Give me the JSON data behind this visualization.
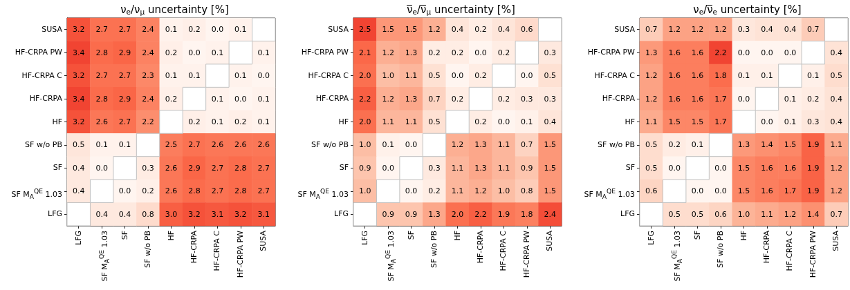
{
  "chart_data": [
    {
      "type": "heatmap",
      "title": "ν$_{e}$/ν$_{μ}$ uncertainty [%]",
      "data_labels": true,
      "categories": [
        "LFG",
        "SF M$_{A}$$^{QE}$ 1.03",
        "SF",
        "SF w/o PB",
        "HF",
        "HF-CRPA",
        "HF-CRPA C",
        "HF-CRPA PW",
        "SUSA"
      ],
      "y_categories": [
        "SUSA",
        "HF-CRPA PW",
        "HF-CRPA C",
        "HF-CRPA",
        "HF",
        "SF w/o PB",
        "SF",
        "SF M$_{A}$$^{QE}$ 1.03",
        "LFG"
      ],
      "cells": [
        [
          3.2,
          2.7,
          2.7,
          2.4,
          0.1,
          0.2,
          0.0,
          0.1,
          null
        ],
        [
          3.4,
          2.8,
          2.9,
          2.4,
          0.2,
          0.0,
          0.1,
          null,
          0.1
        ],
        [
          3.2,
          2.7,
          2.7,
          2.3,
          0.1,
          0.1,
          null,
          0.1,
          0.0
        ],
        [
          3.4,
          2.8,
          2.9,
          2.4,
          0.2,
          null,
          0.1,
          0.0,
          0.1
        ],
        [
          3.2,
          2.6,
          2.7,
          2.2,
          null,
          0.2,
          0.1,
          0.2,
          0.1
        ],
        [
          0.5,
          0.1,
          0.1,
          null,
          2.5,
          2.7,
          2.6,
          2.6,
          2.6
        ],
        [
          0.4,
          0.0,
          null,
          0.3,
          2.6,
          2.9,
          2.7,
          2.8,
          2.7
        ],
        [
          0.4,
          null,
          0.0,
          0.2,
          2.6,
          2.8,
          2.7,
          2.8,
          2.7
        ],
        [
          null,
          0.4,
          0.4,
          0.8,
          3.0,
          3.2,
          3.1,
          3.2,
          3.1
        ]
      ],
      "cell_labels": [
        [
          "3.2",
          "2.7",
          "2.7",
          "2.4",
          "0.1",
          "0.2",
          "0.0",
          "0.1",
          null
        ],
        [
          "3.4",
          "2.8",
          "2.9",
          "2.4",
          "0.2",
          "0.0",
          "0.1",
          null,
          "0.1"
        ],
        [
          "3.2",
          "2.7",
          "2.7",
          "2.3",
          "0.1",
          "0.1",
          null,
          "0.1",
          "0.0"
        ],
        [
          "3.4",
          "2.8",
          "2.9",
          "2.4",
          "0.2",
          null,
          "0.1",
          "0.0",
          "0.1"
        ],
        [
          "3.2",
          "2.6",
          "2.7",
          "2.2",
          null,
          "0.2",
          "0.1",
          "0.2",
          "0.1"
        ],
        [
          "0.5",
          "0.1",
          "0.1",
          null,
          "2.5",
          "2.7",
          "2.6",
          "2.6",
          "2.6"
        ],
        [
          "0.4",
          "0.0",
          null,
          "0.3",
          "2.6",
          "2.9",
          "2.7",
          "2.8",
          "2.7"
        ],
        [
          "0.4",
          null,
          "0.0",
          "0.2",
          "2.6",
          "2.8",
          "2.7",
          "2.8",
          "2.7"
        ],
        [
          null,
          "0.4",
          "0.4",
          "0.8",
          "3.0",
          "3.2",
          "3.1",
          "3.2",
          "3.1"
        ]
      ]
    },
    {
      "type": "heatmap",
      "title": "ν̅$_{e}$/ν̅$_{μ}$ uncertainty [%]",
      "data_labels": true,
      "categories": [
        "LFG",
        "SF M$_{A}$$^{QE}$ 1.03",
        "SF",
        "SF w/o PB",
        "HF",
        "HF-CRPA",
        "HF-CRPA C",
        "HF-CRPA PW",
        "SUSA"
      ],
      "y_categories": [
        "SUSA",
        "HF-CRPA PW",
        "HF-CRPA C",
        "HF-CRPA",
        "HF",
        "SF w/o PB",
        "SF",
        "SF M$_{A}$$^{QE}$ 1.03",
        "LFG"
      ],
      "cells": [
        [
          2.5,
          1.5,
          1.5,
          1.2,
          0.4,
          0.2,
          0.4,
          0.6,
          null
        ],
        [
          2.1,
          1.2,
          1.3,
          0.2,
          0.2,
          0.0,
          0.2,
          null,
          0.3
        ],
        [
          2.0,
          1.0,
          1.1,
          0.5,
          0.0,
          0.2,
          null,
          0.0,
          0.5
        ],
        [
          2.2,
          1.2,
          1.3,
          0.7,
          0.2,
          null,
          0.2,
          0.3,
          0.3
        ],
        [
          2.0,
          1.1,
          1.1,
          0.5,
          null,
          0.2,
          0.0,
          0.1,
          0.4
        ],
        [
          1.0,
          0.1,
          0.0,
          null,
          1.2,
          1.3,
          1.1,
          0.7,
          1.5
        ],
        [
          0.9,
          0.0,
          null,
          0.3,
          1.1,
          1.3,
          1.1,
          0.9,
          1.5
        ],
        [
          1.0,
          null,
          0.0,
          0.2,
          1.1,
          1.2,
          1.0,
          0.8,
          1.5
        ],
        [
          null,
          0.9,
          0.9,
          1.3,
          2.0,
          2.2,
          1.9,
          1.8,
          2.4
        ]
      ],
      "cell_labels": [
        [
          "2.5",
          "1.5",
          "1.5",
          "1.2",
          "0.4",
          "0.2",
          "0.4",
          "0.6",
          null
        ],
        [
          "2.1",
          "1.2",
          "1.3",
          "0.2",
          "0.2",
          "0.0",
          "0.2",
          null,
          "0.3"
        ],
        [
          "2.0",
          "1.0",
          "1.1",
          "0.5",
          "0.0",
          "0.2",
          null,
          "0.0",
          "0.5"
        ],
        [
          "2.2",
          "1.2",
          "1.3",
          "0.7",
          "0.2",
          null,
          "0.2",
          "0.3",
          "0.3"
        ],
        [
          "2.0",
          "1.1",
          "1.1",
          "0.5",
          null,
          "0.2",
          "0.0",
          "0.1",
          "0.4"
        ],
        [
          "1.0",
          "0.1",
          "0.0",
          null,
          "1.2",
          "1.3",
          "1.1",
          "0.7",
          "1.5"
        ],
        [
          "0.9",
          "0.0",
          null,
          "0.3",
          "1.1",
          "1.3",
          "1.1",
          "0.9",
          "1.5"
        ],
        [
          "1.0",
          null,
          "0.0",
          "0.2",
          "1.1",
          "1.2",
          "1.0",
          "0.8",
          "1.5"
        ],
        [
          null,
          "0.9",
          "0.9",
          "1.3",
          "2.0",
          "2.2",
          "1.9",
          "1.8",
          "2.4"
        ]
      ]
    },
    {
      "type": "heatmap",
      "title": "ν$_{e}$/ν̅$_{e}$ uncertainty [%]",
      "data_labels": true,
      "categories": [
        "LFG",
        "SF M$_{A}$$^{QE}$ 1.03",
        "SF",
        "SF w/o PB",
        "HF",
        "HF-CRPA",
        "HF-CRPA C",
        "HF-CRPA PW",
        "SUSA"
      ],
      "y_categories": [
        "SUSA",
        "HF-CRPA PW",
        "HF-CRPA C",
        "HF-CRPA",
        "HF",
        "SF w/o PB",
        "SF",
        "SF M$_{A}$$^{QE}$ 1.03",
        "LFG"
      ],
      "cells": [
        [
          0.7,
          1.2,
          1.2,
          1.2,
          0.3,
          0.4,
          0.4,
          0.7,
          null
        ],
        [
          1.3,
          1.6,
          1.6,
          2.2,
          0.0,
          0.0,
          0.0,
          null,
          0.4
        ],
        [
          1.2,
          1.6,
          1.6,
          1.8,
          0.1,
          0.1,
          null,
          0.1,
          0.5
        ],
        [
          1.2,
          1.6,
          1.6,
          1.7,
          0.0,
          null,
          0.1,
          0.2,
          0.4
        ],
        [
          1.1,
          1.5,
          1.5,
          1.7,
          null,
          0.0,
          0.1,
          0.3,
          0.4
        ],
        [
          0.5,
          0.2,
          0.1,
          null,
          1.3,
          1.4,
          1.5,
          1.9,
          1.1
        ],
        [
          0.5,
          0.0,
          null,
          0.0,
          1.5,
          1.6,
          1.6,
          1.9,
          1.2
        ],
        [
          0.6,
          null,
          0.0,
          0.0,
          1.5,
          1.6,
          1.7,
          1.9,
          1.2
        ],
        [
          null,
          0.5,
          0.5,
          0.6,
          1.0,
          1.1,
          1.2,
          1.4,
          0.7
        ]
      ],
      "cell_labels": [
        [
          "0.7",
          "1.2",
          "1.2",
          "1.2",
          "0.3",
          "0.4",
          "0.4",
          "0.7",
          null
        ],
        [
          "1.3",
          "1.6",
          "1.6",
          "2.2",
          "0.0",
          "0.0",
          "0.0",
          null,
          "0.4"
        ],
        [
          "1.2",
          "1.6",
          "1.6",
          "1.8",
          "0.1",
          "0.1",
          null,
          "0.1",
          "0.5"
        ],
        [
          "1.2",
          "1.6",
          "1.6",
          "1.7",
          "0.0",
          null,
          "0.1",
          "0.2",
          "0.4"
        ],
        [
          "1.1",
          "1.5",
          "1.5",
          "1.7",
          null,
          "0.0",
          "0.1",
          "0.3",
          "0.4"
        ],
        [
          "0.5",
          "0.2",
          "0.1",
          null,
          "1.3",
          "1.4",
          "1.5",
          "1.9",
          "1.1"
        ],
        [
          "0.5",
          "0.0",
          null,
          "0.0",
          "1.5",
          "1.6",
          "1.6",
          "1.9",
          "1.2"
        ],
        [
          "0.6",
          null,
          "0.0",
          "0.0",
          "1.5",
          "1.6",
          "1.7",
          "1.9",
          "1.2"
        ],
        [
          null,
          "0.5",
          "0.5",
          "0.6",
          "1.0",
          "1.1",
          "1.2",
          "1.4",
          "0.7"
        ]
      ]
    }
  ]
}
